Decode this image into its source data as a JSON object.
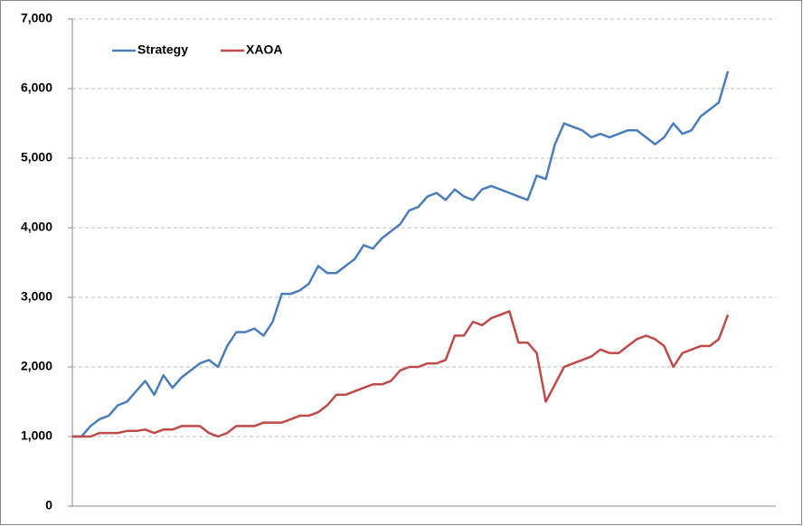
{
  "chart_data": {
    "type": "line",
    "series": [
      {
        "name": "Strategy",
        "color": "#4a7ebb",
        "values": [
          1000,
          1000,
          1150,
          1250,
          1300,
          1450,
          1500,
          1650,
          1800,
          1600,
          1880,
          1700,
          1850,
          1950,
          2050,
          2100,
          2000,
          2300,
          2500,
          2500,
          2550,
          2450,
          2650,
          3050,
          3050,
          3100,
          3200,
          3450,
          3350,
          3350,
          3450,
          3550,
          3750,
          3700,
          3850,
          3950,
          4050,
          4250,
          4300,
          4450,
          4500,
          4400,
          4550,
          4450,
          4400,
          4550,
          4600,
          4550,
          4500,
          4450,
          4400,
          4750,
          4700,
          5200,
          5500,
          5450,
          5400,
          5300,
          5350,
          5300,
          5350,
          5400,
          5400,
          5300,
          5200,
          5300,
          5500,
          5350,
          5400,
          5600,
          5700,
          5800,
          6250
        ]
      },
      {
        "name": "XAOA",
        "color": "#be4b48",
        "values": [
          1000,
          1000,
          1000,
          1050,
          1050,
          1050,
          1080,
          1080,
          1100,
          1050,
          1100,
          1100,
          1150,
          1150,
          1150,
          1050,
          1000,
          1050,
          1150,
          1150,
          1150,
          1200,
          1200,
          1200,
          1250,
          1300,
          1300,
          1350,
          1450,
          1600,
          1600,
          1650,
          1700,
          1750,
          1750,
          1800,
          1950,
          2000,
          2000,
          2050,
          2050,
          2100,
          2450,
          2450,
          2650,
          2600,
          2700,
          2750,
          2800,
          2350,
          2350,
          2200,
          1500,
          1750,
          2000,
          2050,
          2100,
          2150,
          2250,
          2200,
          2200,
          2300,
          2400,
          2450,
          2400,
          2300,
          2000,
          2200,
          2250,
          2300,
          2300,
          2400,
          2750
        ]
      }
    ],
    "ylim": [
      0,
      7000
    ],
    "yticks": [
      0,
      {
        "value": 1000,
        "label": "1,000"
      },
      {
        "value": 2000,
        "label": "2,000"
      },
      {
        "value": 3000,
        "label": "3,000"
      },
      {
        "value": 4000,
        "label": "4,000"
      },
      {
        "value": 5000,
        "label": "5,000"
      },
      {
        "value": 6000,
        "label": "6,000"
      },
      {
        "value": 7000,
        "label": "7,000"
      }
    ],
    "grid": true,
    "legend": "top-left"
  }
}
